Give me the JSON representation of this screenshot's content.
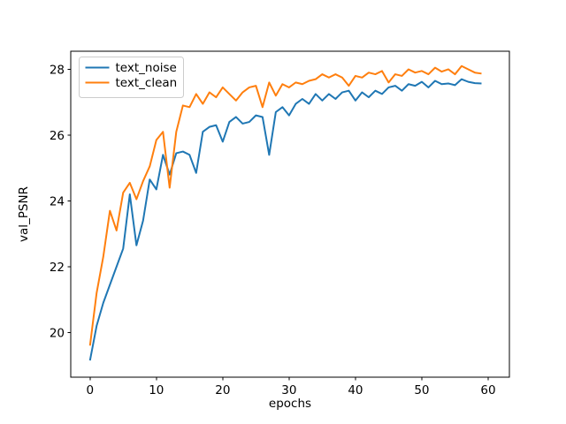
{
  "chart_data": {
    "type": "line",
    "title": "",
    "xlabel": "epochs",
    "ylabel": "val_PSNR",
    "grid": false,
    "legend_position": "upper left",
    "xlim": [
      -2.9,
      63.2
    ],
    "ylim": [
      18.64,
      28.55
    ],
    "xticks": [
      0,
      10,
      20,
      30,
      40,
      50,
      60
    ],
    "yticks": [
      20,
      22,
      24,
      26,
      28
    ],
    "x": [
      0,
      1,
      2,
      3,
      4,
      5,
      6,
      7,
      8,
      9,
      10,
      11,
      12,
      13,
      14,
      15,
      16,
      17,
      18,
      19,
      20,
      21,
      22,
      23,
      24,
      25,
      26,
      27,
      28,
      29,
      30,
      31,
      32,
      33,
      34,
      35,
      36,
      37,
      38,
      39,
      40,
      41,
      42,
      43,
      44,
      45,
      46,
      47,
      48,
      49,
      50,
      51,
      52,
      53,
      54,
      55,
      56,
      57,
      58,
      59
    ],
    "series": [
      {
        "name": "text_noise",
        "color": "#1f77b4",
        "values": [
          19.15,
          20.2,
          20.9,
          21.45,
          22.0,
          22.55,
          24.2,
          22.65,
          23.4,
          24.65,
          24.35,
          25.4,
          24.8,
          25.45,
          25.5,
          25.4,
          24.85,
          26.1,
          26.25,
          26.3,
          25.8,
          26.4,
          26.55,
          26.35,
          26.4,
          26.6,
          26.55,
          25.4,
          26.7,
          26.85,
          26.6,
          26.95,
          27.1,
          26.95,
          27.25,
          27.05,
          27.25,
          27.1,
          27.3,
          27.35,
          27.05,
          27.3,
          27.15,
          27.35,
          27.25,
          27.45,
          27.5,
          27.35,
          27.55,
          27.5,
          27.62,
          27.45,
          27.65,
          27.55,
          27.57,
          27.52,
          27.7,
          27.62,
          27.58,
          27.57
        ]
      },
      {
        "name": "text_clean",
        "color": "#ff7f0e",
        "values": [
          19.6,
          21.2,
          22.3,
          23.7,
          23.1,
          24.25,
          24.55,
          24.05,
          24.6,
          25.05,
          25.85,
          26.1,
          24.4,
          26.1,
          26.9,
          26.85,
          27.25,
          26.95,
          27.3,
          27.15,
          27.45,
          27.25,
          27.05,
          27.3,
          27.45,
          27.5,
          26.85,
          27.6,
          27.2,
          27.55,
          27.45,
          27.6,
          27.55,
          27.65,
          27.7,
          27.85,
          27.75,
          27.85,
          27.75,
          27.5,
          27.8,
          27.75,
          27.9,
          27.85,
          27.95,
          27.6,
          27.85,
          27.8,
          28.0,
          27.9,
          27.95,
          27.85,
          28.05,
          27.93,
          28.0,
          27.85,
          28.1,
          28.0,
          27.9,
          27.87
        ]
      }
    ]
  },
  "legend": {
    "items": [
      {
        "label": "text_noise",
        "color": "#1f77b4"
      },
      {
        "label": "text_clean",
        "color": "#ff7f0e"
      }
    ]
  }
}
